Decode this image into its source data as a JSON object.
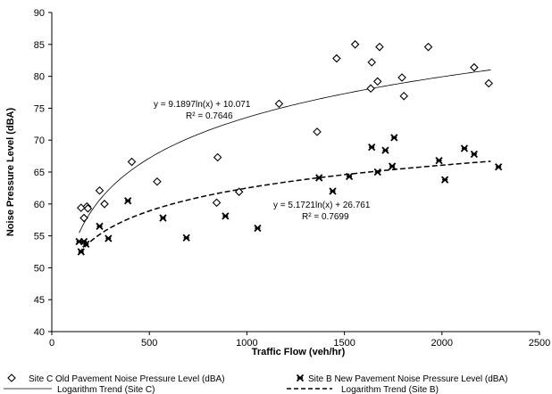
{
  "chart_data": {
    "type": "scatter",
    "title": "",
    "xlabel": "Traffic Flow (veh/hr)",
    "ylabel": "Noise Pressure Level (dBA)",
    "xlim": [
      0,
      2500
    ],
    "ylim": [
      40,
      90
    ],
    "xticks": [
      0,
      500,
      1000,
      1500,
      2000,
      2500
    ],
    "yticks": [
      40,
      45,
      50,
      55,
      60,
      65,
      70,
      75,
      80,
      85,
      90
    ],
    "grid": false,
    "legend_position": "bottom",
    "series": [
      {
        "name": "Site C Old Pavement Noise Pressure Level (dBA)",
        "marker": "diamond",
        "color": "#000000",
        "points": [
          [
            150,
            59.4
          ],
          [
            165,
            57.8
          ],
          [
            180,
            59.6
          ],
          [
            185,
            59.3
          ],
          [
            245,
            62.1
          ],
          [
            270,
            60.0
          ],
          [
            410,
            66.6
          ],
          [
            540,
            63.5
          ],
          [
            845,
            60.2
          ],
          [
            850,
            67.3
          ],
          [
            960,
            61.9
          ],
          [
            1165,
            75.7
          ],
          [
            1360,
            71.3
          ],
          [
            1460,
            82.8
          ],
          [
            1555,
            85.0
          ],
          [
            1635,
            78.1
          ],
          [
            1640,
            82.2
          ],
          [
            1670,
            79.2
          ],
          [
            1680,
            84.6
          ],
          [
            1795,
            79.8
          ],
          [
            1805,
            76.9
          ],
          [
            1930,
            84.6
          ],
          [
            2165,
            81.4
          ],
          [
            2240,
            78.9
          ]
        ]
      },
      {
        "name": "Site B New Pavement Noise Pressure Level (dBA)",
        "marker": "asterisk",
        "color": "#000000",
        "points": [
          [
            140,
            54.1
          ],
          [
            150,
            52.5
          ],
          [
            165,
            54.1
          ],
          [
            175,
            53.7
          ],
          [
            245,
            56.5
          ],
          [
            290,
            54.6
          ],
          [
            390,
            60.5
          ],
          [
            570,
            57.8
          ],
          [
            690,
            54.7
          ],
          [
            890,
            58.1
          ],
          [
            1055,
            56.2
          ],
          [
            1370,
            64.1
          ],
          [
            1440,
            62.0
          ],
          [
            1525,
            64.3
          ],
          [
            1640,
            68.9
          ],
          [
            1670,
            65.0
          ],
          [
            1710,
            68.4
          ],
          [
            1745,
            65.9
          ],
          [
            1755,
            70.4
          ],
          [
            1985,
            66.8
          ],
          [
            2015,
            63.8
          ],
          [
            2115,
            68.7
          ],
          [
            2165,
            67.8
          ],
          [
            2290,
            65.8
          ]
        ]
      },
      {
        "name": "Logarithm Trend (Site C)",
        "type": "line",
        "style": "solid",
        "color": "#000000",
        "a": 9.1897,
        "b": 10.071,
        "x_range": [
          140,
          2250
        ]
      },
      {
        "name": "Logarithm Trend (Site B)",
        "type": "line",
        "style": "dashed",
        "color": "#000000",
        "a": 5.1721,
        "b": 26.761,
        "x_range": [
          140,
          2250
        ]
      }
    ],
    "annotations": [
      {
        "text": "y = 9.1897ln(x)  + 10.071",
        "r2": "R² = 0.7646",
        "series": "Logarithm Trend (Site C)"
      },
      {
        "text": "y = 5.1721ln(x)  + 26.761",
        "r2": "R² = 0.7699",
        "series": "Logarithm Trend (Site B)"
      }
    ]
  }
}
